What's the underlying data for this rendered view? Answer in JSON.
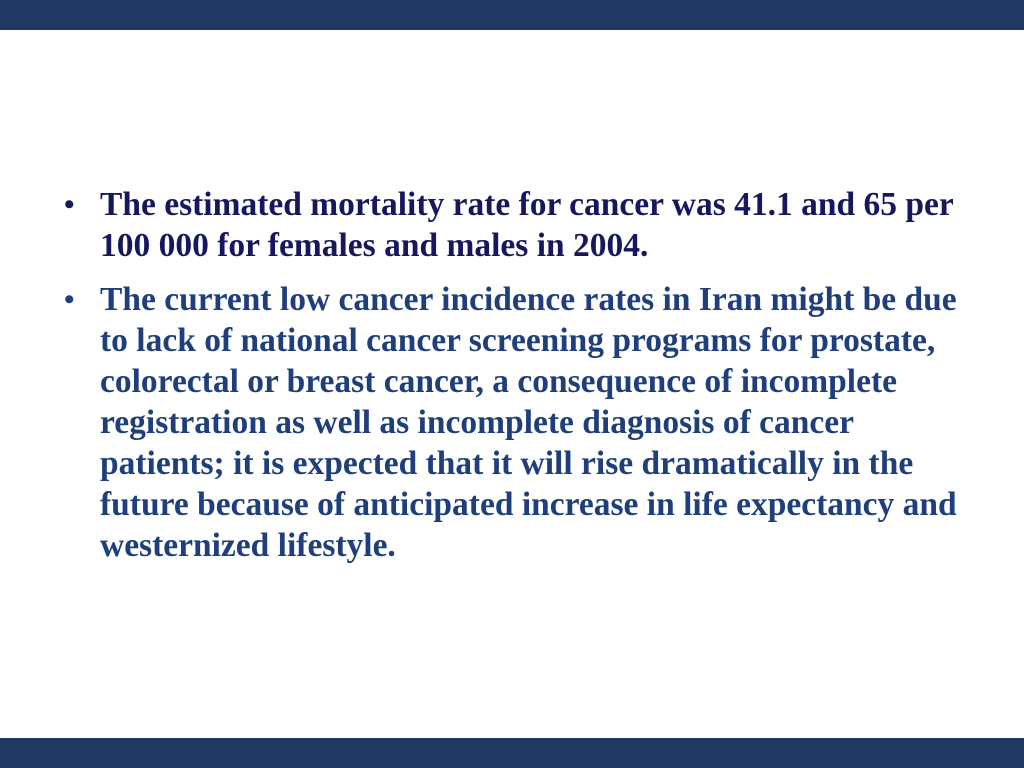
{
  "slide": {
    "bar_color": "#1F3864",
    "bullet_glyph": "•",
    "bullets": [
      {
        "text": "The estimated mortality rate for cancer was 41.1 and 65 per 100 000 for females and males in 2004.",
        "color": "#17175E"
      },
      {
        "text": "The current low cancer incidence rates in Iran might be due to lack of national cancer screening programs for prostate, colorectal or breast cancer, a consequence of incomplete registration as well as incomplete diagnosis of cancer patients; it is expected that it will rise dramatically in the future because of anticipated increase in life expectancy and westernized lifestyle.",
        "color": "#1F3E7C"
      }
    ]
  }
}
